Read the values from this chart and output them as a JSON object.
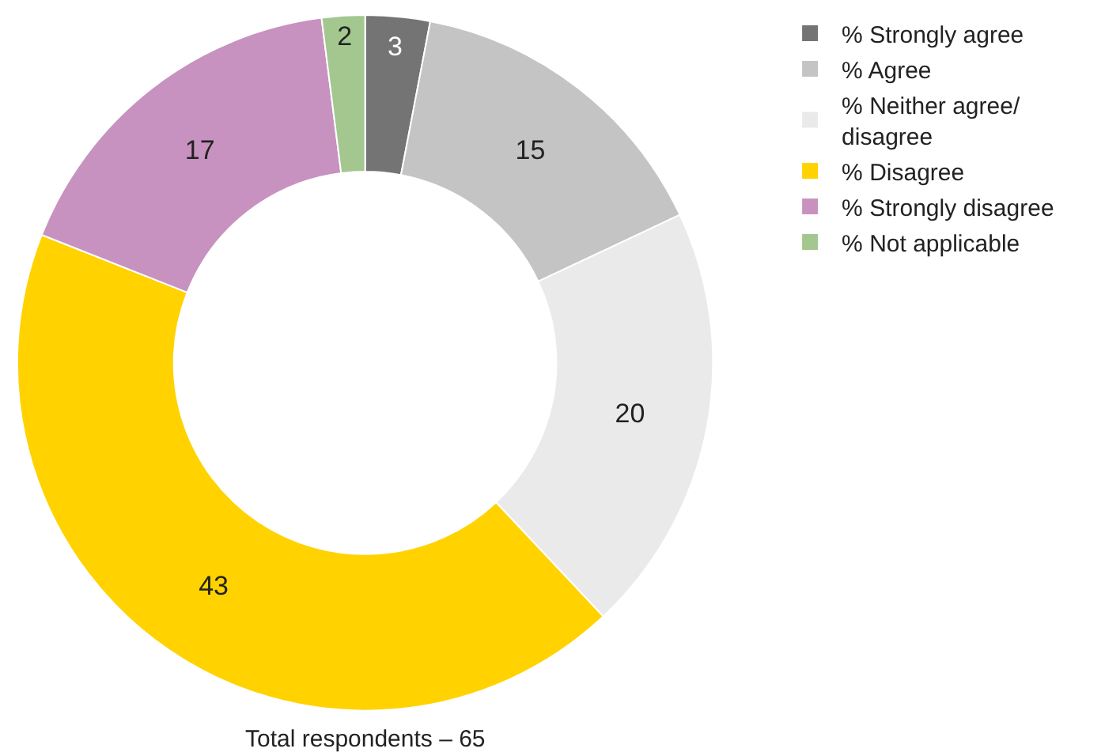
{
  "chart_data": {
    "type": "donut",
    "categories": [
      "% Strongly agree",
      "% Agree",
      "% Neither agree/\ndisagree",
      "% Disagree",
      "% Strongly disagree",
      "% Not applicable"
    ],
    "values": [
      3,
      15,
      20,
      43,
      17,
      2
    ],
    "colors": [
      "#747474",
      "#c4c4c4",
      "#e9eae9",
      "#ffd200",
      "#c792c0",
      "#a3c78f"
    ],
    "data_labels": true,
    "legend": "right",
    "annotations": [
      "Total respondents – 65"
    ]
  }
}
